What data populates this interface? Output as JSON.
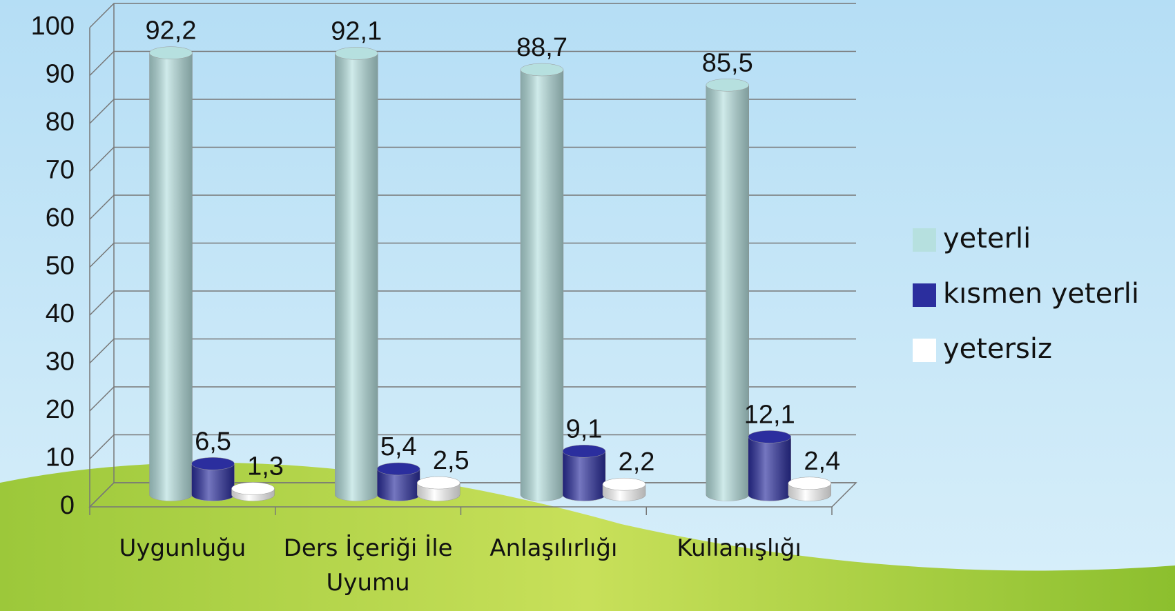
{
  "chart_data": {
    "type": "bar",
    "categories": [
      "Uygunluğu",
      "Ders İçeriği İle Uyumu",
      "Anlaşılırlığı",
      "Kullanışlığı"
    ],
    "series": [
      {
        "name": "yeterli",
        "color": "#b6e0df",
        "values": [
          92.2,
          92.1,
          88.7,
          85.5
        ],
        "value_labels": [
          "92,2",
          "92,1",
          "88,7",
          "85,5"
        ]
      },
      {
        "name": "kısmen yeterli",
        "color": "#2b2e9e",
        "values": [
          6.5,
          5.4,
          9.1,
          12.1
        ],
        "value_labels": [
          "6,5",
          "5,4",
          "9,1",
          "12,1"
        ]
      },
      {
        "name": "yetersiz",
        "color": "#ffffff",
        "values": [
          1.3,
          2.5,
          2.2,
          2.4
        ],
        "value_labels": [
          "1,3",
          "2,5",
          "2,2",
          "2,4"
        ]
      }
    ],
    "ylim": [
      0,
      100
    ],
    "yticks": [
      0,
      10,
      20,
      30,
      40,
      50,
      60,
      70,
      80,
      90,
      100
    ],
    "grid": true,
    "legend": "right"
  }
}
